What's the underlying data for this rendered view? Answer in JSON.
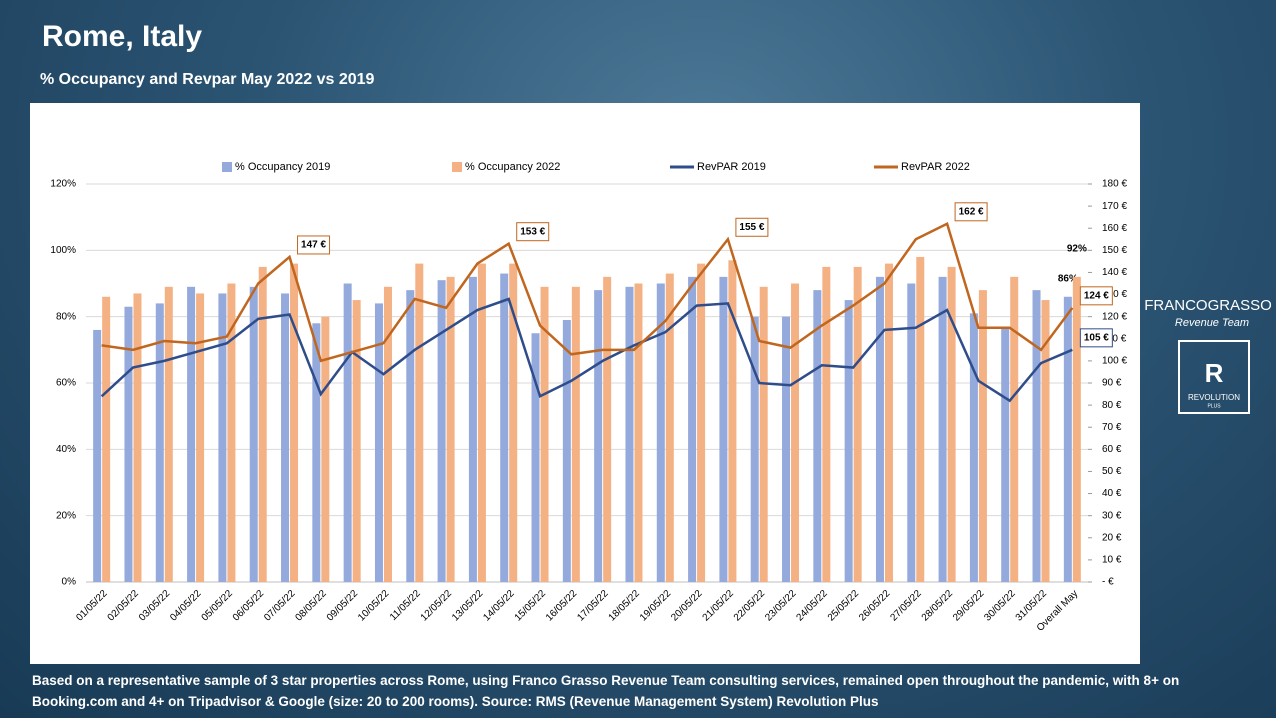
{
  "chart_data": {
    "type": "bar_line",
    "title": "Rome, Italy",
    "subtitle": "% Occupancy and Revpar May 2022 vs 2019",
    "categories": [
      "01/05/22",
      "02/05/22",
      "03/05/22",
      "04/05/22",
      "05/05/22",
      "06/05/22",
      "07/05/22",
      "08/05/22",
      "09/05/22",
      "10/05/22",
      "11/05/22",
      "12/05/22",
      "13/05/22",
      "14/05/22",
      "15/05/22",
      "16/05/22",
      "17/05/22",
      "18/05/22",
      "19/05/22",
      "20/05/22",
      "21/05/22",
      "22/05/22",
      "23/05/22",
      "24/05/22",
      "25/05/22",
      "26/05/22",
      "27/05/22",
      "28/05/22",
      "29/05/22",
      "30/05/22",
      "31/05/22",
      "Overall May"
    ],
    "series": [
      {
        "name": "% Occupancy 2019",
        "type": "bar",
        "color": "#94a9dc",
        "values": [
          76,
          83,
          84,
          89,
          87,
          89,
          87,
          78,
          90,
          84,
          88,
          91,
          92,
          93,
          75,
          79,
          88,
          89,
          90,
          92,
          92,
          80,
          80,
          88,
          85,
          92,
          90,
          92,
          81,
          77,
          88,
          86
        ],
        "value_labels": [
          null,
          null,
          null,
          null,
          null,
          null,
          null,
          null,
          null,
          null,
          null,
          null,
          null,
          null,
          null,
          null,
          null,
          null,
          null,
          null,
          null,
          null,
          null,
          null,
          null,
          null,
          null,
          null,
          null,
          null,
          null,
          "86%"
        ]
      },
      {
        "name": "% Occupancy 2022",
        "type": "bar",
        "color": "#f4b183",
        "values": [
          86,
          87,
          89,
          87,
          90,
          95,
          96,
          80,
          85,
          89,
          96,
          92,
          96,
          96,
          89,
          89,
          92,
          90,
          93,
          96,
          97,
          89,
          90,
          95,
          95,
          96,
          98,
          95,
          88,
          92,
          85,
          92
        ],
        "value_labels": [
          null,
          null,
          null,
          null,
          null,
          null,
          null,
          null,
          null,
          null,
          null,
          null,
          null,
          null,
          null,
          null,
          null,
          null,
          null,
          null,
          null,
          null,
          null,
          null,
          null,
          null,
          null,
          null,
          null,
          null,
          null,
          "92%"
        ]
      },
      {
        "name": "RevPAR 2019",
        "type": "line",
        "axis": "y2",
        "color": "#2f4d8a",
        "values": [
          84,
          97,
          100,
          104,
          108,
          119,
          121,
          85,
          104,
          94,
          105,
          114,
          123,
          128,
          84,
          91,
          100,
          107,
          113,
          125,
          126,
          90,
          89,
          98,
          97,
          114,
          115,
          123,
          91,
          82,
          99,
          105
        ],
        "value_labels": [
          null,
          null,
          null,
          null,
          null,
          null,
          null,
          null,
          null,
          null,
          null,
          null,
          null,
          null,
          null,
          null,
          null,
          null,
          null,
          null,
          null,
          null,
          null,
          null,
          null,
          null,
          null,
          null,
          null,
          null,
          null,
          "105 €"
        ]
      },
      {
        "name": "RevPAR 2022",
        "type": "line",
        "axis": "y2",
        "color": "#c0661f",
        "values": [
          107,
          105,
          109,
          108,
          111,
          135,
          147,
          100,
          104,
          108,
          128,
          124,
          144,
          153,
          116,
          103,
          105,
          105,
          118,
          137,
          155,
          109,
          106,
          116,
          125,
          135,
          155,
          162,
          115,
          115,
          105,
          124
        ],
        "value_labels": [
          null,
          null,
          null,
          null,
          null,
          null,
          "147 €",
          null,
          null,
          null,
          null,
          null,
          null,
          "153 €",
          null,
          null,
          null,
          null,
          null,
          null,
          "155 €",
          null,
          null,
          null,
          null,
          null,
          null,
          "162 €",
          null,
          null,
          null,
          "124 €"
        ]
      }
    ],
    "ylim": [
      0,
      120
    ],
    "yticks": [
      {
        "value": 0,
        "label": "0%"
      },
      {
        "value": 20,
        "label": "20%"
      },
      {
        "value": 40,
        "label": "40%"
      },
      {
        "value": 60,
        "label": "60%"
      },
      {
        "value": 80,
        "label": "80%"
      },
      {
        "value": 100,
        "label": "100%"
      },
      {
        "value": 120,
        "label": "120%"
      }
    ],
    "y2lim": [
      0,
      180
    ],
    "y2ticks": [
      {
        "value": 0,
        "label": "- €"
      },
      {
        "value": 10,
        "label": "10 €"
      },
      {
        "value": 20,
        "label": "20 €"
      },
      {
        "value": 30,
        "label": "30 €"
      },
      {
        "value": 40,
        "label": "40 €"
      },
      {
        "value": 50,
        "label": "50 €"
      },
      {
        "value": 60,
        "label": "60 €"
      },
      {
        "value": 70,
        "label": "70 €"
      },
      {
        "value": 80,
        "label": "80 €"
      },
      {
        "value": 90,
        "label": "90 €"
      },
      {
        "value": 100,
        "label": "100 €"
      },
      {
        "value": 110,
        "label": "110 €"
      },
      {
        "value": 120,
        "label": "120 €"
      },
      {
        "value": 130,
        "label": "130 €"
      },
      {
        "value": 140,
        "label": "140 €"
      },
      {
        "value": 150,
        "label": "150 €"
      },
      {
        "value": 160,
        "label": "160 €"
      },
      {
        "value": 170,
        "label": "170 €"
      },
      {
        "value": 180,
        "label": "180 €"
      }
    ],
    "legend": "top"
  },
  "footnote": "Based on a representative sample of 3 star properties across Rome, using Franco Grasso Revenue Team consulting services, remained open throughout the pandemic, with 8+ on Booking.com and 4+ on Tripadvisor & Google (size: 20 to 200 rooms). Source: RMS (Revenue Management System) Revolution Plus",
  "logos": {
    "franco_grasso": "FRANCOGRASSO",
    "franco_grasso_sub": "Revenue Team",
    "revolution_icon": "R",
    "revolution": "REVOLUTION",
    "revolution_sub": "PLUS"
  }
}
